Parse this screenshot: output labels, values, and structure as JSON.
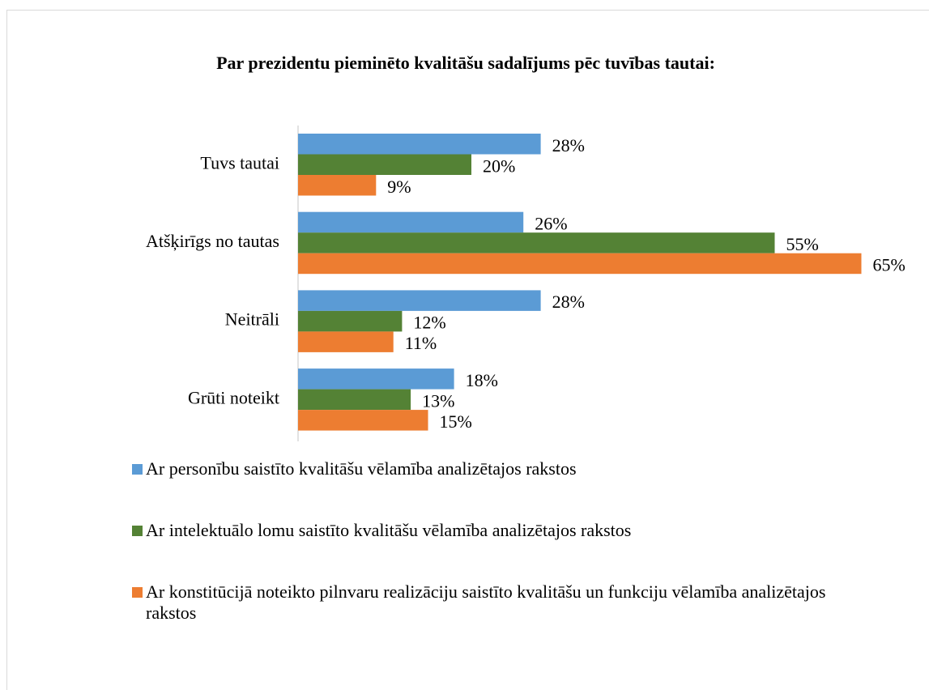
{
  "chart_data": {
    "type": "bar",
    "orientation": "horizontal",
    "title": "Par prezidentu pieminēto kvalitāšu sadalījums pēc tuvības tautai:",
    "categories": [
      "Tuvs tautai",
      "Atšķirīgs no tautas",
      "Neitrāli",
      "Grūti noteikt"
    ],
    "series": [
      {
        "name": "Ar personību saistīto kvalitāšu vēlamība analizētajos rakstos",
        "color": "#5b9bd5",
        "values": [
          28,
          26,
          28,
          18
        ],
        "value_labels": [
          "28%",
          "26%",
          "28%",
          "18%"
        ]
      },
      {
        "name": "Ar intelektuālo lomu saistīto kvalitāšu vēlamība analizētajos rakstos",
        "color": "#548235",
        "values": [
          20,
          55,
          12,
          13
        ],
        "value_labels": [
          "20%",
          "55%",
          "12%",
          "13%"
        ]
      },
      {
        "name": "Ar konstitūcijā noteikto pilnvaru realizāciju saistīto kvalitāšu un funkciju vēlamība analizētajos rakstos",
        "color": "#ed7d31",
        "values": [
          9,
          65,
          11,
          15
        ],
        "value_labels": [
          "9%",
          "65%",
          "11%",
          "15%"
        ]
      }
    ],
    "legend": "bottom"
  }
}
